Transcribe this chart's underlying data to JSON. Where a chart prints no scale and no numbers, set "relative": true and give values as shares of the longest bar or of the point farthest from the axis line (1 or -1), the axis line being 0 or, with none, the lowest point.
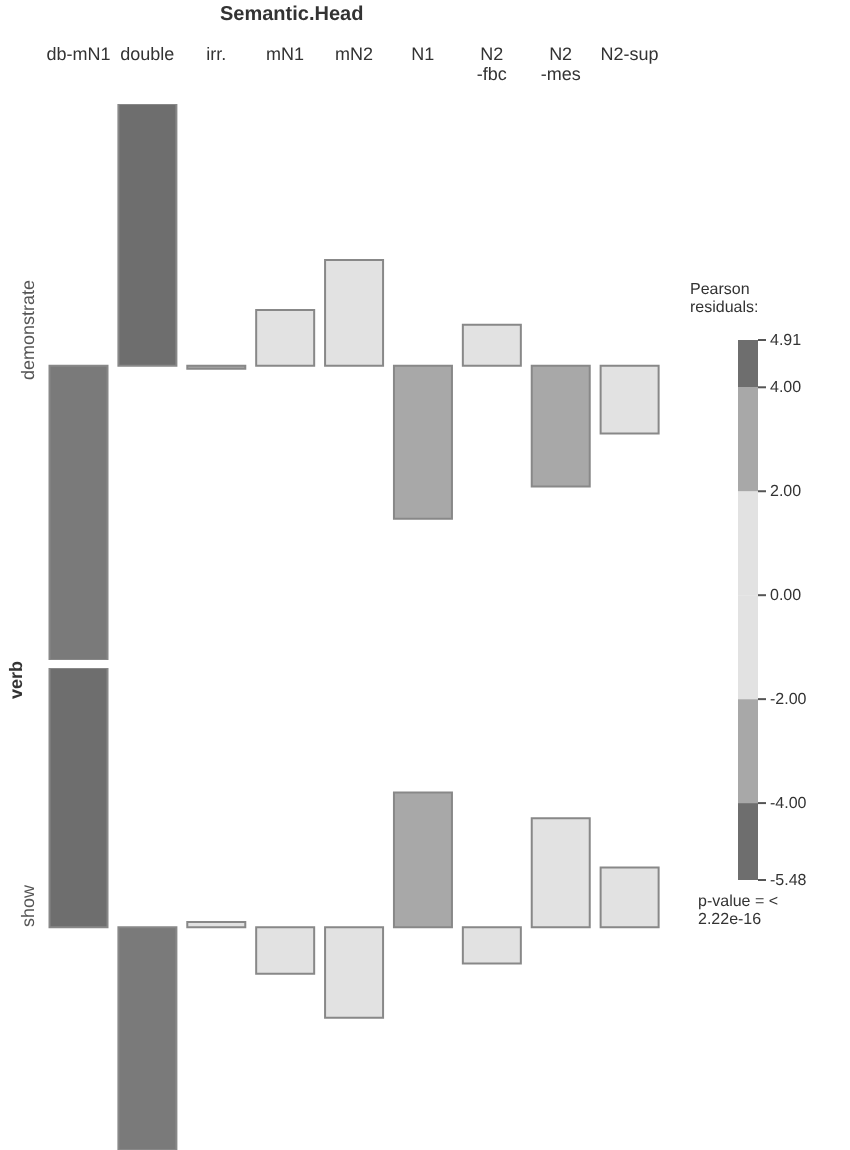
{
  "chart_data": [
    {
      "type": "bar",
      "title": "Semantic.Head",
      "ylabel": "demonstrate",
      "relative": true,
      "categories": [
        "db-mN1",
        "double",
        "irr.",
        "mN1",
        "mN2",
        "N1",
        "N2 -fbc",
        "N2 -mes",
        "N2-sup"
      ],
      "values": [
        -1,
        0.89,
        -0.01,
        0.19,
        0.36,
        -0.52,
        0.14,
        -0.41,
        -0.23
      ],
      "colors": [
        "#7a7a7a",
        "#6e6e6e",
        "#a8a8a8",
        "#e2e2e2",
        "#e2e2e2",
        "#a8a8a8",
        "#e2e2e2",
        "#a8a8a8",
        "#e2e2e2"
      ],
      "clabel": "Pearson residuals:",
      "clim": [
        -5.48,
        4.91
      ],
      "cticks": [
        -5.48,
        {
          "value": -4,
          "label": "-4.00"
        },
        {
          "value": -2,
          "label": "-2.00"
        },
        {
          "value": 0,
          "label": "0.00"
        },
        {
          "value": 2,
          "label": "2.00"
        },
        {
          "value": 4,
          "label": "4.00"
        },
        4.91
      ],
      "annotations": [
        "verb",
        "p-value = < 2.22e-16"
      ]
    },
    {
      "type": "bar",
      "ylabel": "show",
      "relative": true,
      "tick_labels": false,
      "categories": [
        null,
        null,
        null,
        null,
        null,
        null,
        null,
        null,
        null
      ],
      "values": [
        1,
        -0.86,
        0.02,
        -0.18,
        -0.35,
        0.52,
        -0.14,
        0.42,
        0.23
      ],
      "colors": [
        "#6e6e6e",
        "#7a7a7a",
        "#e2e2e2",
        "#e2e2e2",
        "#e2e2e2",
        "#a8a8a8",
        "#e2e2e2",
        "#e2e2e2",
        "#e2e2e2"
      ]
    }
  ]
}
